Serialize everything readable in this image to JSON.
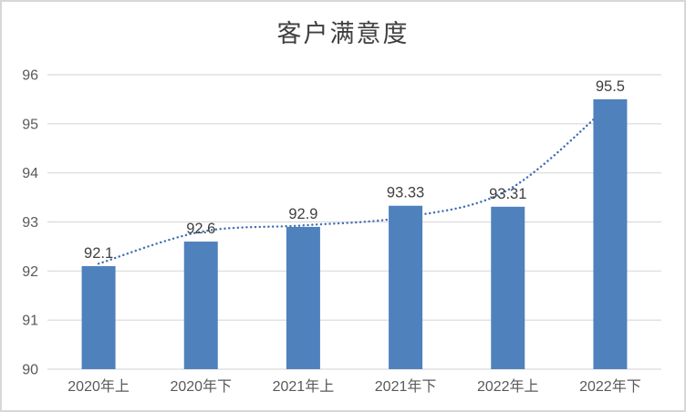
{
  "window": {
    "background_color": "#ffffff",
    "border_color": "#d7d7d7"
  },
  "chart_data": {
    "type": "bar",
    "title": "客户满意度",
    "categories": [
      "2020年上",
      "2020年下",
      "2021年上",
      "2021年下",
      "2022年上",
      "2022年下"
    ],
    "values": [
      92.1,
      92.6,
      92.9,
      93.33,
      93.31,
      95.5
    ],
    "data_labels": [
      "92.1",
      "92.6",
      "92.9",
      "93.33",
      "93.31",
      "95.5"
    ],
    "ylim": [
      90,
      96
    ],
    "yticks": [
      "90",
      "91",
      "92",
      "93",
      "94",
      "95",
      "96"
    ],
    "xlabel": "",
    "ylabel": "",
    "grid": "horizontal",
    "legend": "none",
    "bar_color": "#4f81bd",
    "gridline_color": "#d9d9d9",
    "axis_label_color": "#595959",
    "data_label_color": "#3f3f3f",
    "title_color": "#3f3f3f",
    "trendline": {
      "style": "dotted",
      "color": "#3e6fb5",
      "values_at_categories": [
        92.15,
        92.8,
        92.93,
        93.1,
        93.65,
        95.4
      ]
    }
  }
}
